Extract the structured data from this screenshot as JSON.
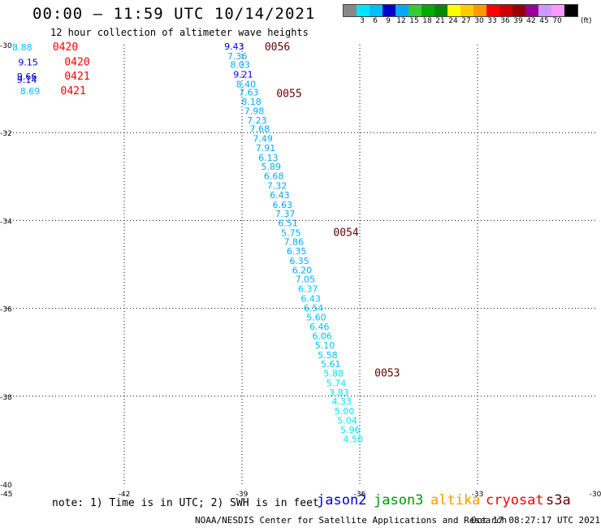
{
  "title": "00:00 – 11:59 UTC 10/14/2021",
  "subtitle": "12 hour collection of altimeter wave heights",
  "scale": {
    "colors": [
      "#888888",
      "#00e5ff",
      "#00bfff",
      "#0000cc",
      "#00aaff",
      "#33cc33",
      "#00aa00",
      "#008800",
      "#ffff00",
      "#ffcc00",
      "#ff9900",
      "#ff0000",
      "#cc0000",
      "#990000",
      "#990099",
      "#cc99ff",
      "#ff99ff",
      "#000000"
    ],
    "labels": [
      "3",
      "6",
      "9",
      "12",
      "15",
      "18",
      "21",
      "24",
      "27",
      "30",
      "33",
      "36",
      "39",
      "42",
      "45",
      "70"
    ],
    "unit": "(ft)"
  },
  "map": {
    "lon_labels": [
      "-45",
      "-42",
      "-39",
      "-36",
      "-33",
      "-30"
    ],
    "lat_labels": [
      "-30",
      "-32",
      "-34",
      "-36",
      "-38",
      "-40"
    ],
    "lon_range": [
      -45,
      -30
    ],
    "lat_range": [
      -40,
      -30
    ]
  },
  "chart_data": {
    "type": "scatter",
    "title": "00:00 – 11:59 UTC 10/14/2021",
    "subtitle": "12 hour collection of altimeter wave heights",
    "x_label": "",
    "y_label": "",
    "xlim": [
      -45,
      -30
    ],
    "ylim": [
      -40,
      -30
    ],
    "track_main": {
      "values": [
        "9.43",
        "7.36",
        "8.03",
        "9.21",
        "8.40",
        "7.63",
        "8.18",
        "7.98",
        "7.23",
        "7.68",
        "7.49",
        "7.91",
        "6.13",
        "5.89",
        "6.68",
        "7.32",
        "6.43",
        "6.63",
        "7.37",
        "6.51",
        "5.75",
        "7.86",
        "6.35",
        "6.35",
        "6.20",
        "7.05",
        "6.37",
        "6.43",
        "6.54",
        "5.60",
        "6.46",
        "6.06",
        "5.10",
        "5.58",
        "5.61",
        "5.88",
        "5.74",
        "3.83",
        "4.33",
        "5.00",
        "5.04",
        "5.96",
        "4.50"
      ],
      "colors": [
        "#0000cc",
        "#00aaff",
        "#00aaff",
        "#0000cc",
        "#00aaff",
        "#00aaff",
        "#00aaff",
        "#00aaff",
        "#00aaff",
        "#00aaff",
        "#00aaff",
        "#00aaff",
        "#00aaff",
        "#00aaff",
        "#00aaff",
        "#00aaff",
        "#00aaff",
        "#00aaff",
        "#00aaff",
        "#00aaff",
        "#00aaff",
        "#00aaff",
        "#00aaff",
        "#00aaff",
        "#00aaff",
        "#00aaff",
        "#00bfff",
        "#00bfff",
        "#00bfff",
        "#00bfff",
        "#00bfff",
        "#00bfff",
        "#00bfff",
        "#00bfff",
        "#00bfff",
        "#00e5ff",
        "#00e5ff",
        "#00e5ff",
        "#00e5ff",
        "#00e5ff",
        "#00e5ff",
        "#00e5ff",
        "#00e5ff"
      ],
      "lat": [
        -30.0,
        -30.22,
        -30.42,
        -30.64,
        -30.86,
        -31.04,
        -31.26,
        -31.47,
        -31.68,
        -31.88,
        -32.1,
        -32.31,
        -32.53,
        -32.74,
        -32.95,
        -33.17,
        -33.38,
        -33.6,
        -33.81,
        -34.02,
        -34.24,
        -34.45,
        -34.66,
        -34.88,
        -35.09,
        -35.3,
        -35.52,
        -35.74,
        -35.95,
        -36.16,
        -36.38,
        -36.59,
        -36.8,
        -37.02,
        -37.23,
        -37.44,
        -37.66,
        -37.87,
        -38.08,
        -38.3,
        -38.51,
        -38.72,
        -38.94
      ],
      "lon": [
        -39.2,
        -39.12,
        -39.05,
        -38.97,
        -38.9,
        -38.83,
        -38.76,
        -38.69,
        -38.62,
        -38.55,
        -38.47,
        -38.4,
        -38.33,
        -38.26,
        -38.19,
        -38.11,
        -38.04,
        -37.97,
        -37.9,
        -37.83,
        -37.75,
        -37.68,
        -37.61,
        -37.54,
        -37.47,
        -37.39,
        -37.32,
        -37.25,
        -37.18,
        -37.11,
        -37.03,
        -36.96,
        -36.89,
        -36.82,
        -36.74,
        -36.67,
        -36.6,
        -36.53,
        -36.46,
        -36.39,
        -36.32,
        -36.24,
        -36.17
      ]
    },
    "track_left": {
      "values": [
        "8.88",
        "9.15",
        "9.66",
        "9.14",
        "8.69"
      ],
      "colors": [
        "#00bfff",
        "#0000cc",
        "#0000cc",
        "#0000cc",
        "#00bfff"
      ],
      "lat": [
        -30.02,
        -30.36,
        -30.68,
        -30.76,
        -31.02
      ],
      "lon": [
        -44.6,
        -44.45,
        -44.48,
        -44.48,
        -44.4
      ]
    },
    "time_marks": [
      {
        "label": "0420",
        "color": "#ff0000",
        "lat": -30.02,
        "lon": -43.5
      },
      {
        "label": "0420",
        "color": "#ff0000",
        "lat": -30.36,
        "lon": -43.2
      },
      {
        "label": "0421",
        "color": "#ff0000",
        "lat": -30.68,
        "lon": -43.2
      },
      {
        "label": "0421",
        "color": "#ff0000",
        "lat": -31.02,
        "lon": -43.3
      },
      {
        "label": "0056",
        "color": "#660000",
        "lat": -30.02,
        "lon": -38.1
      },
      {
        "label": "0055",
        "color": "#660000",
        "lat": -31.08,
        "lon": -37.8
      },
      {
        "label": "0054",
        "color": "#660000",
        "lat": -34.24,
        "lon": -36.35
      },
      {
        "label": "0053",
        "color": "#660000",
        "lat": -37.44,
        "lon": -35.3
      }
    ]
  },
  "note": "note:  1) Time is in UTC; 2) SWH is in feet",
  "legend": [
    {
      "label": "jason2",
      "color": "#0000cc"
    },
    {
      "label": "jason3",
      "color": "#009900"
    },
    {
      "label": "altika",
      "color": "#ff9900"
    },
    {
      "label": "cryosat",
      "color": "#ff0000"
    },
    {
      "label": "s3a",
      "color": "#660000"
    }
  ],
  "footer": "NOAA/NESDIS Center for Satellite Applications and Research",
  "footer_time": "Oct 17 08:27:17 UTC 2021"
}
